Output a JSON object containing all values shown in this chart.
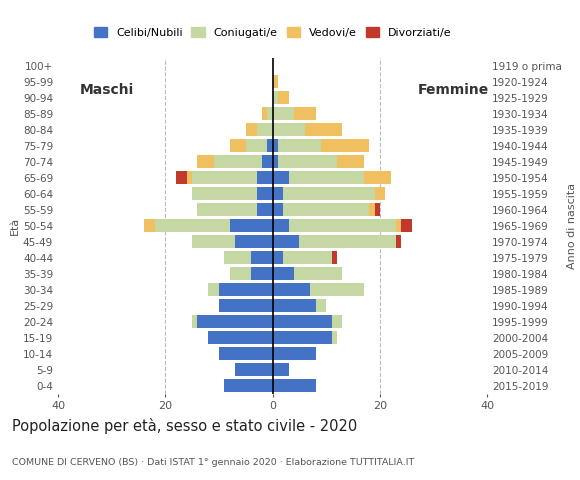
{
  "age_groups": [
    "0-4",
    "5-9",
    "10-14",
    "15-19",
    "20-24",
    "25-29",
    "30-34",
    "35-39",
    "40-44",
    "45-49",
    "50-54",
    "55-59",
    "60-64",
    "65-69",
    "70-74",
    "75-79",
    "80-84",
    "85-89",
    "90-94",
    "95-99",
    "100+"
  ],
  "birth_years": [
    "2015-2019",
    "2010-2014",
    "2005-2009",
    "2000-2004",
    "1995-1999",
    "1990-1994",
    "1985-1989",
    "1980-1984",
    "1975-1979",
    "1970-1974",
    "1965-1969",
    "1960-1964",
    "1955-1959",
    "1950-1954",
    "1945-1949",
    "1940-1944",
    "1935-1939",
    "1930-1934",
    "1925-1929",
    "1920-1924",
    "1919 o prima"
  ],
  "males": {
    "celibe": [
      9,
      7,
      10,
      12,
      14,
      10,
      10,
      4,
      4,
      7,
      8,
      3,
      3,
      3,
      2,
      1,
      0,
      0,
      0,
      0,
      0
    ],
    "coniugato": [
      0,
      0,
      0,
      0,
      1,
      0,
      2,
      4,
      5,
      8,
      14,
      11,
      12,
      12,
      9,
      4,
      3,
      1,
      0,
      0,
      0
    ],
    "vedovo": [
      0,
      0,
      0,
      0,
      0,
      0,
      0,
      0,
      0,
      0,
      2,
      0,
      0,
      1,
      3,
      3,
      2,
      1,
      0,
      0,
      0
    ],
    "divorziato": [
      0,
      0,
      0,
      0,
      0,
      0,
      0,
      0,
      0,
      0,
      0,
      0,
      0,
      2,
      0,
      0,
      0,
      0,
      0,
      0,
      0
    ]
  },
  "females": {
    "celibe": [
      8,
      3,
      8,
      11,
      11,
      8,
      7,
      4,
      2,
      5,
      3,
      2,
      2,
      3,
      1,
      1,
      0,
      0,
      0,
      0,
      0
    ],
    "coniugato": [
      0,
      0,
      0,
      1,
      2,
      2,
      10,
      9,
      9,
      18,
      20,
      16,
      17,
      14,
      11,
      8,
      6,
      4,
      1,
      0,
      0
    ],
    "vedovo": [
      0,
      0,
      0,
      0,
      0,
      0,
      0,
      0,
      0,
      0,
      1,
      1,
      2,
      5,
      5,
      9,
      7,
      4,
      2,
      1,
      0
    ],
    "divorziato": [
      0,
      0,
      0,
      0,
      0,
      0,
      0,
      0,
      1,
      1,
      2,
      1,
      0,
      0,
      0,
      0,
      0,
      0,
      0,
      0,
      0
    ]
  },
  "colors": {
    "celibe": "#4472c4",
    "coniugato": "#c5d8a4",
    "vedovo": "#f0c060",
    "divorziato": "#c0392b"
  },
  "xlim": 40,
  "title": "Popolazione per età, sesso e stato civile - 2020",
  "subtitle": "COMUNE DI CERVENO (BS) · Dati ISTAT 1° gennaio 2020 · Elaborazione TUTTITALIA.IT",
  "ylabel_left": "Età",
  "ylabel_right": "Anno di nascita",
  "label_maschi": "Maschi",
  "label_femmine": "Femmine",
  "legend_labels": [
    "Celibi/Nubili",
    "Coniugati/e",
    "Vedovi/e",
    "Divorziati/e"
  ],
  "background_color": "#ffffff",
  "grid_color": "#bbbbbb"
}
